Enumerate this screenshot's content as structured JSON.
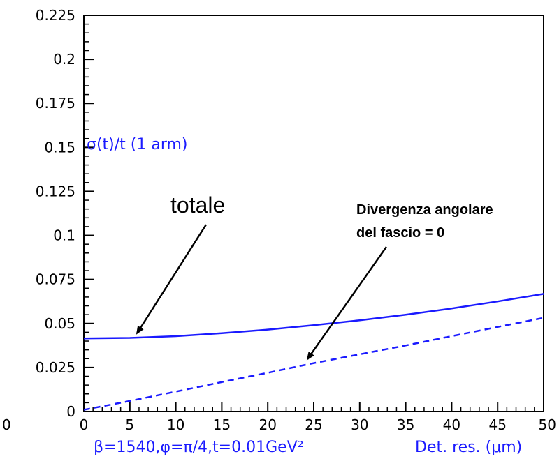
{
  "chart_data": {
    "type": "line",
    "x": [
      0,
      5,
      10,
      15,
      20,
      25,
      30,
      35,
      40,
      45,
      50
    ],
    "series": [
      {
        "style": "solid",
        "values": [
          0.0415,
          0.0418,
          0.0428,
          0.0445,
          0.0465,
          0.049,
          0.0518,
          0.055,
          0.0585,
          0.0625,
          0.0668
        ]
      },
      {
        "style": "dashed",
        "values": [
          0.001,
          0.006,
          0.0113,
          0.0167,
          0.022,
          0.0275,
          0.0325,
          0.0375,
          0.0428,
          0.048,
          0.0532
        ]
      }
    ],
    "xlim": [
      0,
      50
    ],
    "ylim": [
      0,
      0.225
    ],
    "x_ticks": [
      "0",
      "5",
      "10",
      "15",
      "20",
      "25",
      "30",
      "35",
      "40",
      "45",
      "50"
    ],
    "y_ticks": [
      "0",
      "0.025",
      "0.05",
      "0.075",
      "0.1",
      "0.125",
      "0.15",
      "0.175",
      "0.2",
      "0.225"
    ],
    "stray_left_label": "0",
    "xlabel_params": "β=1540,φ=π/4,t=0.01GeV²",
    "xlabel": "Det. res. (μm)",
    "inplot_label": "σ(t)/t (1 arm)",
    "annotations": [
      {
        "text": "totale",
        "x": 5.5,
        "y": 0.0415
      },
      {
        "lines": [
          "Divergenza angolare",
          "del fascio = 0"
        ],
        "x": 25,
        "y": 0.028
      }
    ],
    "line_color": "#1a1aff",
    "axis_color": "#000000"
  }
}
